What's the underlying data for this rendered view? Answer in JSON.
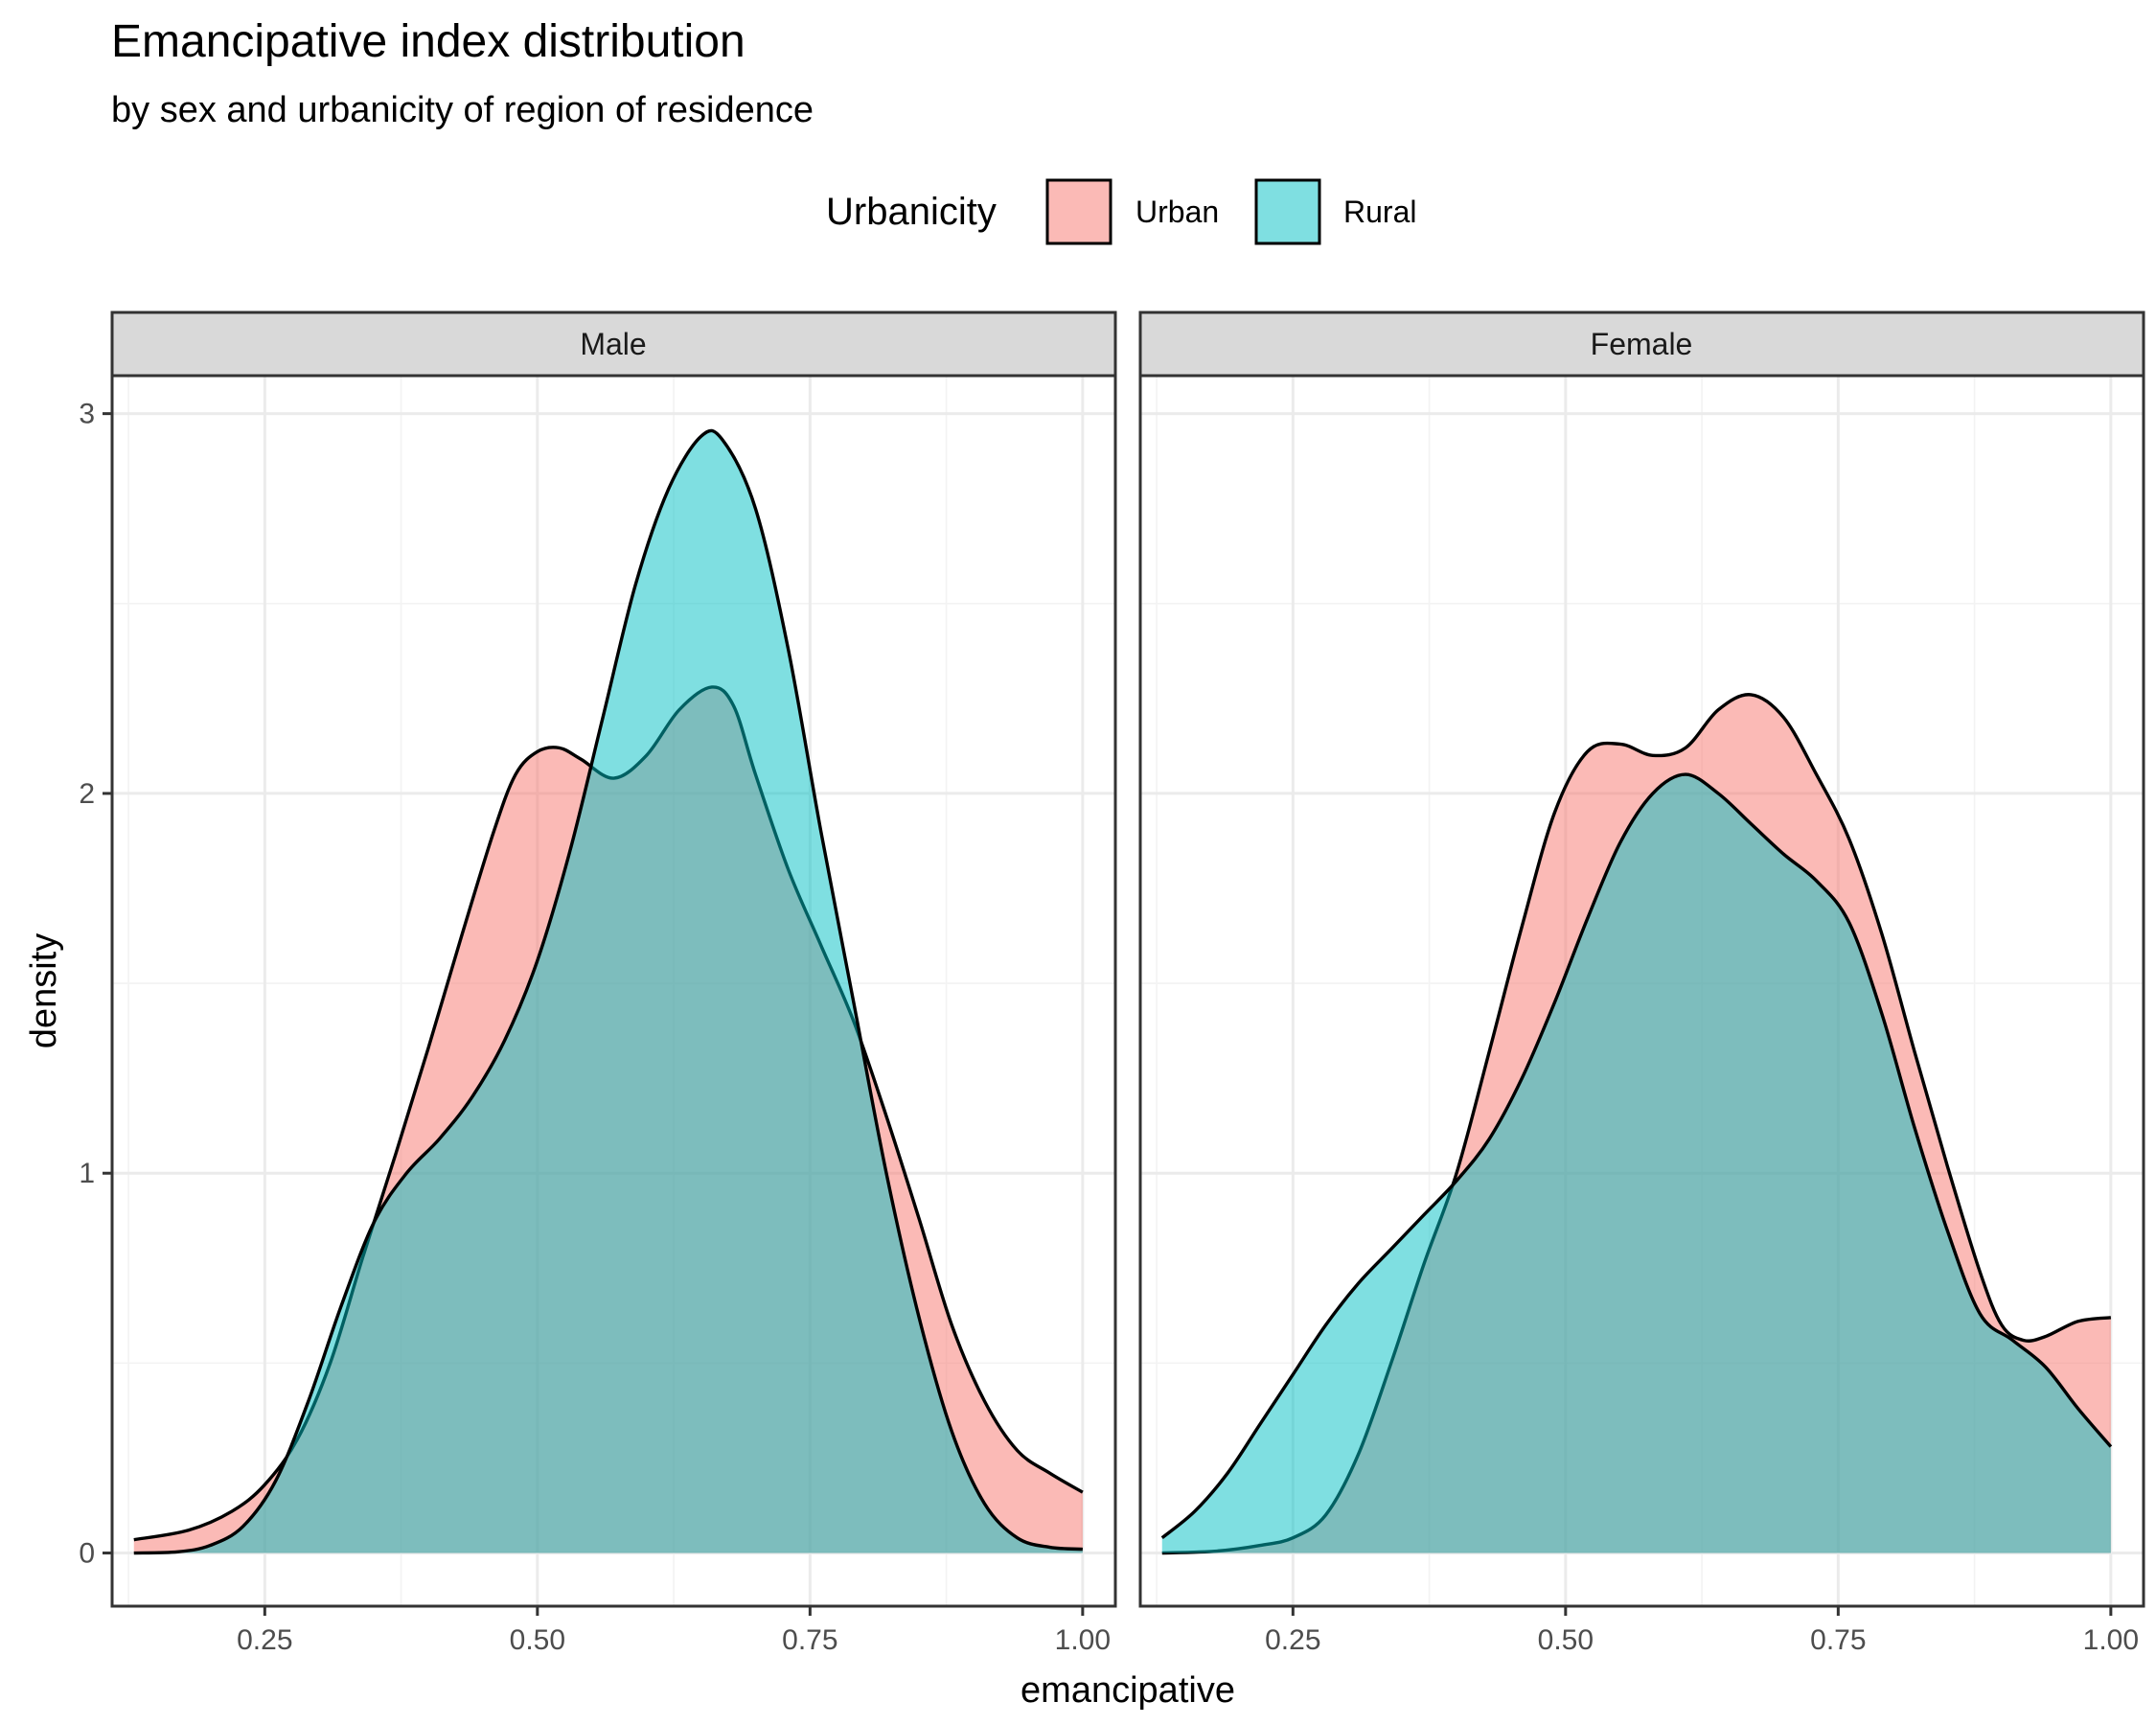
{
  "chart_data": {
    "type": "area",
    "title": "Emancipative index distribution",
    "subtitle": "by sex and urbanicity of region of residence",
    "xlabel": "emancipative",
    "ylabel": "density",
    "xlim": [
      0.11,
      1.03
    ],
    "ylim": [
      -0.14,
      3.1
    ],
    "x_ticks": [
      0.25,
      0.5,
      0.75,
      1.0
    ],
    "x_tick_labels": [
      "0.25",
      "0.50",
      "0.75",
      "1.00"
    ],
    "y_ticks": [
      0,
      1,
      2,
      3
    ],
    "y_tick_labels": [
      "0",
      "1",
      "2",
      "3"
    ],
    "grid": true,
    "legend": {
      "title": "Urbanicity",
      "position": "top",
      "entries": [
        {
          "label": "Urban",
          "color": "#F8766D"
        },
        {
          "label": "Rural",
          "color": "#00BFC4"
        }
      ]
    },
    "fill_alpha": 0.5,
    "outline_color": "#000000",
    "panels": [
      {
        "label": "Male",
        "series": [
          {
            "name": "Urban",
            "color": "#F8766D",
            "points": [
              [
                0.13,
                0.035
              ],
              [
                0.18,
                0.06
              ],
              [
                0.22,
                0.11
              ],
              [
                0.25,
                0.18
              ],
              [
                0.28,
                0.3
              ],
              [
                0.31,
                0.5
              ],
              [
                0.34,
                0.78
              ],
              [
                0.37,
                1.05
              ],
              [
                0.4,
                1.33
              ],
              [
                0.43,
                1.62
              ],
              [
                0.46,
                1.9
              ],
              [
                0.48,
                2.05
              ],
              [
                0.5,
                2.11
              ],
              [
                0.52,
                2.12
              ],
              [
                0.54,
                2.09
              ],
              [
                0.57,
                2.04
              ],
              [
                0.6,
                2.1
              ],
              [
                0.63,
                2.22
              ],
              [
                0.66,
                2.28
              ],
              [
                0.68,
                2.23
              ],
              [
                0.7,
                2.05
              ],
              [
                0.73,
                1.8
              ],
              [
                0.76,
                1.6
              ],
              [
                0.79,
                1.4
              ],
              [
                0.82,
                1.15
              ],
              [
                0.85,
                0.88
              ],
              [
                0.88,
                0.6
              ],
              [
                0.91,
                0.4
              ],
              [
                0.94,
                0.27
              ],
              [
                0.97,
                0.21
              ],
              [
                1.0,
                0.16
              ]
            ]
          },
          {
            "name": "Rural",
            "color": "#00BFC4",
            "points": [
              [
                0.13,
                0.0
              ],
              [
                0.17,
                0.003
              ],
              [
                0.2,
                0.02
              ],
              [
                0.23,
                0.07
              ],
              [
                0.26,
                0.19
              ],
              [
                0.29,
                0.4
              ],
              [
                0.32,
                0.65
              ],
              [
                0.35,
                0.87
              ],
              [
                0.38,
                1.0
              ],
              [
                0.41,
                1.09
              ],
              [
                0.44,
                1.2
              ],
              [
                0.47,
                1.35
              ],
              [
                0.5,
                1.56
              ],
              [
                0.53,
                1.85
              ],
              [
                0.56,
                2.2
              ],
              [
                0.59,
                2.55
              ],
              [
                0.62,
                2.8
              ],
              [
                0.65,
                2.94
              ],
              [
                0.67,
                2.93
              ],
              [
                0.7,
                2.75
              ],
              [
                0.73,
                2.38
              ],
              [
                0.76,
                1.9
              ],
              [
                0.79,
                1.45
              ],
              [
                0.82,
                1.0
              ],
              [
                0.85,
                0.62
              ],
              [
                0.88,
                0.32
              ],
              [
                0.91,
                0.13
              ],
              [
                0.94,
                0.04
              ],
              [
                0.97,
                0.015
              ],
              [
                1.0,
                0.01
              ]
            ]
          }
        ]
      },
      {
        "label": "Female",
        "series": [
          {
            "name": "Urban",
            "color": "#F8766D",
            "points": [
              [
                0.13,
                0.0
              ],
              [
                0.18,
                0.005
              ],
              [
                0.22,
                0.02
              ],
              [
                0.25,
                0.04
              ],
              [
                0.28,
                0.1
              ],
              [
                0.31,
                0.26
              ],
              [
                0.34,
                0.5
              ],
              [
                0.37,
                0.76
              ],
              [
                0.4,
                1.0
              ],
              [
                0.43,
                1.32
              ],
              [
                0.46,
                1.65
              ],
              [
                0.49,
                1.95
              ],
              [
                0.52,
                2.11
              ],
              [
                0.55,
                2.13
              ],
              [
                0.58,
                2.1
              ],
              [
                0.61,
                2.12
              ],
              [
                0.64,
                2.22
              ],
              [
                0.67,
                2.26
              ],
              [
                0.7,
                2.2
              ],
              [
                0.73,
                2.05
              ],
              [
                0.76,
                1.88
              ],
              [
                0.79,
                1.63
              ],
              [
                0.82,
                1.32
              ],
              [
                0.85,
                1.02
              ],
              [
                0.88,
                0.74
              ],
              [
                0.9,
                0.6
              ],
              [
                0.92,
                0.56
              ],
              [
                0.94,
                0.57
              ],
              [
                0.97,
                0.61
              ],
              [
                1.0,
                0.62
              ]
            ]
          },
          {
            "name": "Rural",
            "color": "#00BFC4",
            "points": [
              [
                0.13,
                0.04
              ],
              [
                0.16,
                0.11
              ],
              [
                0.19,
                0.21
              ],
              [
                0.22,
                0.34
              ],
              [
                0.25,
                0.47
              ],
              [
                0.28,
                0.6
              ],
              [
                0.31,
                0.71
              ],
              [
                0.34,
                0.8
              ],
              [
                0.37,
                0.89
              ],
              [
                0.4,
                0.98
              ],
              [
                0.43,
                1.09
              ],
              [
                0.46,
                1.25
              ],
              [
                0.49,
                1.45
              ],
              [
                0.52,
                1.67
              ],
              [
                0.55,
                1.87
              ],
              [
                0.58,
                2.0
              ],
              [
                0.61,
                2.05
              ],
              [
                0.64,
                2.0
              ],
              [
                0.67,
                1.92
              ],
              [
                0.7,
                1.84
              ],
              [
                0.73,
                1.77
              ],
              [
                0.76,
                1.66
              ],
              [
                0.79,
                1.42
              ],
              [
                0.82,
                1.12
              ],
              [
                0.85,
                0.85
              ],
              [
                0.88,
                0.63
              ],
              [
                0.91,
                0.56
              ],
              [
                0.94,
                0.49
              ],
              [
                0.97,
                0.38
              ],
              [
                1.0,
                0.28
              ]
            ]
          }
        ]
      }
    ]
  }
}
